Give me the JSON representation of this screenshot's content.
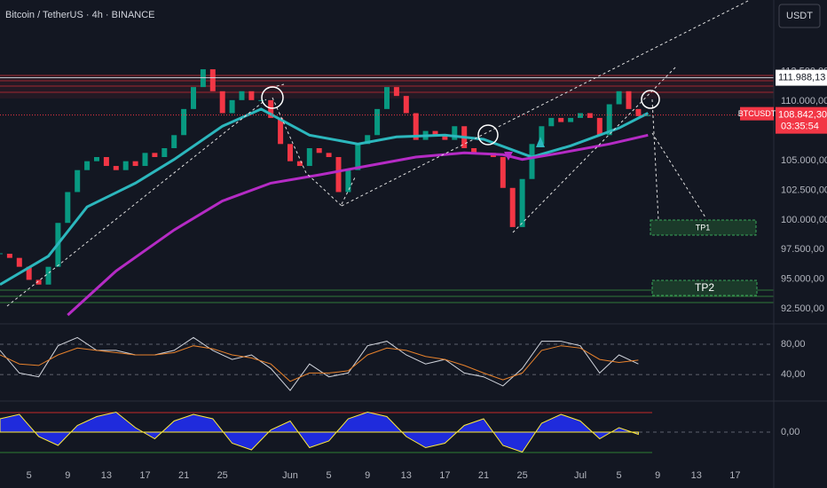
{
  "chart_data": [
    {
      "type": "candlestick",
      "title": "Bitcoin / TetherUS · 4h · BINANCE",
      "currency": "USDT",
      "symbol": "BTCUSDT",
      "countdown": "03:35:54",
      "up_color": "#089981",
      "down_color": "#f23645",
      "x": [
        2,
        3,
        4,
        5,
        6,
        7,
        8,
        9,
        10,
        11,
        12,
        13,
        14,
        15,
        16,
        17,
        18,
        19,
        20,
        21,
        22,
        23,
        24,
        25,
        26,
        27,
        28,
        29,
        30,
        31,
        32,
        33,
        34,
        35,
        36,
        37,
        38,
        39,
        40,
        41,
        42,
        43,
        44,
        45,
        46,
        47,
        48,
        49,
        50,
        51,
        52,
        53,
        54,
        55,
        56,
        57,
        58,
        59,
        60,
        61,
        62,
        63,
        64,
        65,
        66,
        67,
        68,
        69
      ],
      "values": [
        97150,
        96800,
        96050,
        94950,
        94550,
        96050,
        99750,
        102350,
        104200,
        104950,
        105300,
        104550,
        104200,
        104950,
        104550,
        105650,
        105300,
        106050,
        107150,
        109350,
        111200,
        112700,
        110850,
        109000,
        110100,
        110850,
        110100,
        110100,
        108600,
        106400,
        104950,
        104550,
        106050,
        105650,
        105300,
        102350,
        104200,
        106400,
        107150,
        109350,
        111200,
        110450,
        109000,
        106750,
        107500,
        107150,
        106750,
        107900,
        106050,
        105650,
        105650,
        105300,
        102700,
        99400,
        103450,
        106400,
        107900,
        108600,
        108250,
        108600,
        109000,
        108600,
        107150,
        109750,
        110850,
        109350,
        108750,
        108842.3
      ],
      "overlays": [
        {
          "color": "#2cb7bd",
          "x": [
            2,
            7,
            11,
            16,
            20,
            25,
            29,
            34,
            39,
            43,
            48,
            52,
            57,
            61,
            66,
            69
          ],
          "values": [
            94550,
            96950,
            101100,
            103100,
            105100,
            107900,
            109350,
            107150,
            106400,
            107000,
            107150,
            106800,
            105300,
            106250,
            107750,
            109000
          ]
        },
        {
          "color": "#b52bc5",
          "x": [
            9,
            14,
            20,
            25,
            30,
            35,
            40,
            45,
            50,
            54,
            56,
            60,
            65,
            69
          ],
          "values": [
            91980,
            95700,
            99150,
            101600,
            103100,
            103800,
            104550,
            105300,
            105650,
            105500,
            105100,
            105650,
            106400,
            107150
          ]
        }
      ],
      "price_lines": [
        {
          "value": 111988.13,
          "label": "111.988,13"
        }
      ],
      "last_price": {
        "value": 108842.3,
        "label": "108.842,30"
      },
      "annotations": [
        "TP1",
        "TP2"
      ],
      "xlim": [
        2,
        82
      ],
      "ylim": [
        91240,
        118240
      ],
      "yticks": [
        {
          "value": 112500,
          "label": "112.500,00"
        },
        {
          "value": 110000,
          "label": "110.000,00"
        },
        {
          "value": 105000,
          "label": "105.000,00"
        },
        {
          "value": 102500,
          "label": "102.500,00"
        },
        {
          "value": 100000,
          "label": "100.000,00"
        },
        {
          "value": 97500,
          "label": "97.500,00"
        },
        {
          "value": 95000,
          "label": "95.000,00"
        },
        {
          "value": 92500,
          "label": "92.500,00"
        }
      ],
      "xticks": [
        5,
        9,
        13,
        17,
        21,
        25,
        {
          "value": 32,
          "label": "Jun"
        },
        {
          "value": 36,
          "label": "5"
        },
        {
          "value": 40,
          "label": "9"
        },
        {
          "value": 44,
          "label": "13"
        },
        {
          "value": 48,
          "label": "17"
        },
        {
          "value": 52,
          "label": "21"
        },
        {
          "value": 56,
          "label": "25"
        },
        {
          "value": 62,
          "label": "Jul"
        },
        {
          "value": 66,
          "label": "5"
        },
        {
          "value": 70,
          "label": "9"
        },
        {
          "value": 74,
          "label": "13"
        },
        {
          "value": 78,
          "label": "17"
        }
      ]
    },
    {
      "type": "line",
      "x": [
        2,
        4,
        6,
        8,
        10,
        12,
        14,
        16,
        18,
        20,
        22,
        24,
        26,
        28,
        30,
        32,
        34,
        36,
        38,
        40,
        42,
        44,
        46,
        48,
        50,
        52,
        54,
        56,
        58,
        60,
        62,
        64,
        66,
        68
      ],
      "series": [
        {
          "color": "#d1d4dc",
          "values": [
            72,
            42,
            37,
            78,
            89,
            72,
            72,
            66,
            66,
            72,
            89,
            72,
            60,
            66,
            48,
            19,
            54,
            37,
            42,
            78,
            84,
            66,
            54,
            60,
            42,
            37,
            25,
            48,
            84,
            84,
            78,
            42,
            66,
            54
          ]
        },
        {
          "color": "#e8822c",
          "values": [
            66,
            54,
            52,
            66,
            75,
            72,
            69,
            66,
            66,
            69,
            78,
            74,
            66,
            62,
            54,
            31,
            42,
            42,
            45,
            66,
            75,
            72,
            64,
            60,
            52,
            42,
            33,
            42,
            72,
            78,
            75,
            60,
            56,
            59
          ]
        }
      ],
      "ylim": [
        5,
        107
      ],
      "yticks": [
        {
          "value": 80,
          "label": "80,00"
        },
        {
          "value": 40,
          "label": "40,00"
        }
      ]
    },
    {
      "type": "area",
      "color": "#1f2bdc",
      "x": [
        2,
        4,
        6,
        8,
        10,
        12,
        14,
        16,
        18,
        20,
        22,
        24,
        26,
        28,
        30,
        32,
        34,
        36,
        38,
        40,
        42,
        44,
        46,
        48,
        50,
        52,
        54,
        56,
        58,
        60,
        62,
        64,
        66,
        68
      ],
      "values": [
        0.6,
        0.8,
        -0.2,
        -0.6,
        0.3,
        0.7,
        0.9,
        0.2,
        -0.3,
        0.5,
        0.8,
        0.6,
        -0.5,
        -0.8,
        0.1,
        0.5,
        -0.7,
        -0.4,
        0.6,
        0.9,
        0.7,
        -0.2,
        -0.7,
        -0.5,
        0.3,
        0.6,
        -0.6,
        -0.9,
        0.4,
        0.8,
        0.5,
        -0.3,
        0.2,
        -0.1
      ],
      "ylim": [
        -1.4,
        1.4
      ],
      "yticks": [
        {
          "value": 0,
          "label": "0,00"
        }
      ]
    }
  ]
}
